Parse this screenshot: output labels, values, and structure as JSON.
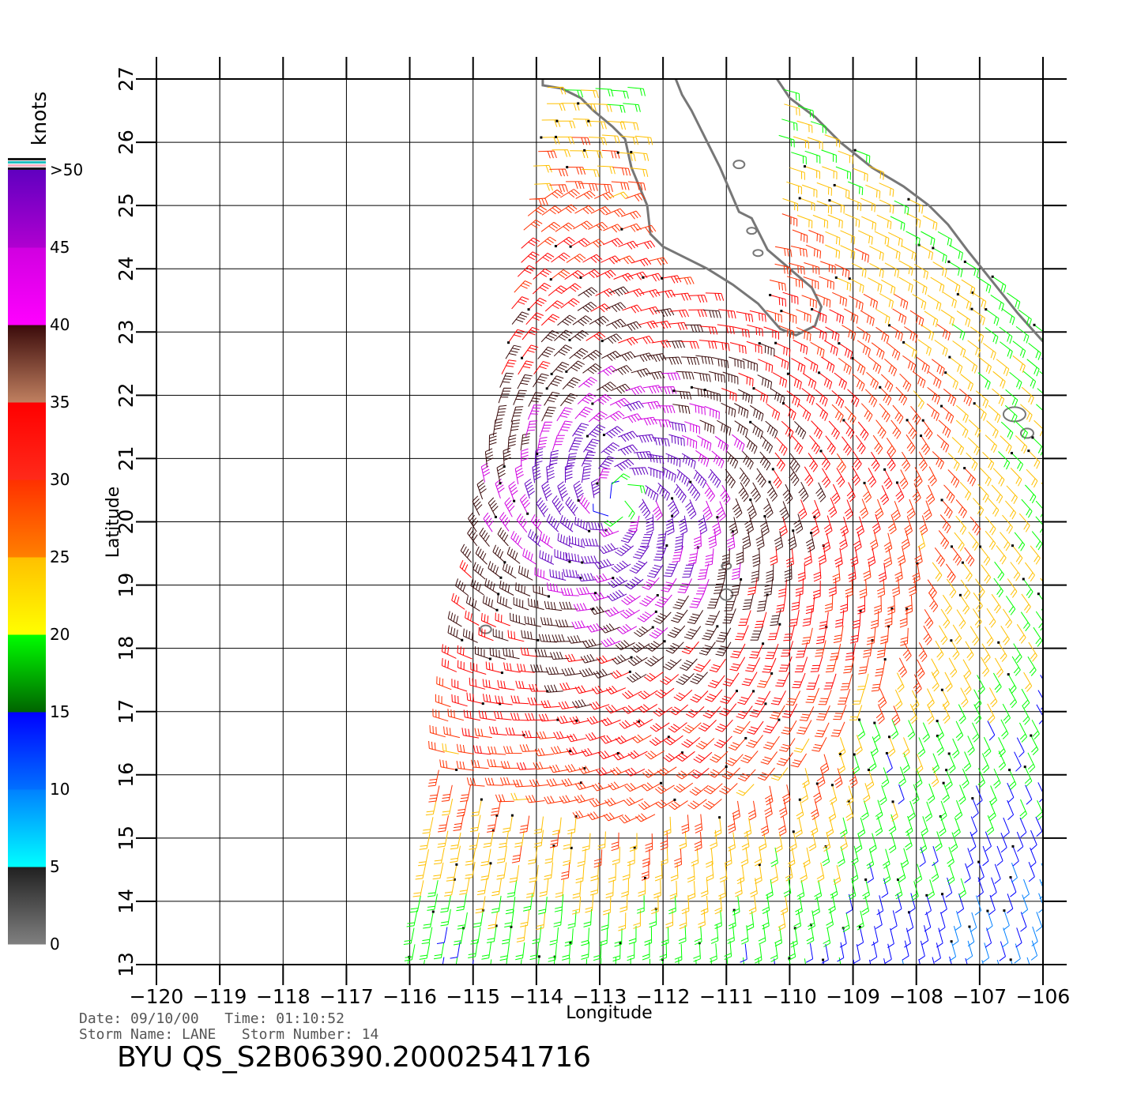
{
  "chart_data": {
    "type": "wind-barb-map",
    "xlabel": "Longitude",
    "ylabel": "Latitude",
    "xlim": [
      -120,
      -106
    ],
    "ylim": [
      13,
      27
    ],
    "x_ticks": [
      "-120",
      "-119",
      "-118",
      "-117",
      "-116",
      "-115",
      "-114",
      "-113",
      "-112",
      "-111",
      "-110",
      "-109",
      "-108",
      "-107",
      "-106"
    ],
    "y_ticks": [
      "13",
      "14",
      "15",
      "16",
      "17",
      "18",
      "19",
      "20",
      "21",
      "22",
      "23",
      "24",
      "25",
      "26",
      "27"
    ],
    "grid": true,
    "colorbar": {
      "unit": "knots",
      "position": "left",
      "labels": [
        "0",
        "5",
        "10",
        "15",
        "20",
        "25",
        "30",
        "35",
        "40",
        "45",
        ">50"
      ],
      "bins": [
        {
          "from": 0,
          "to": 5,
          "colors": [
            "#808080",
            "#202020"
          ]
        },
        {
          "from": 5,
          "to": 10,
          "colors": [
            "#00ffff",
            "#0080ff"
          ]
        },
        {
          "from": 10,
          "to": 15,
          "colors": [
            "#0070ff",
            "#0000ff"
          ]
        },
        {
          "from": 15,
          "to": 20,
          "colors": [
            "#006400",
            "#00ff00"
          ]
        },
        {
          "from": 20,
          "to": 25,
          "colors": [
            "#ffff00",
            "#ffc000"
          ]
        },
        {
          "from": 25,
          "to": 30,
          "colors": [
            "#ff8000",
            "#ff3000"
          ]
        },
        {
          "from": 30,
          "to": 35,
          "colors": [
            "#ff2a1a",
            "#ff0000"
          ]
        },
        {
          "from": 35,
          "to": 40,
          "colors": [
            "#c08060",
            "#3a0a0a"
          ]
        },
        {
          "from": 40,
          "to": 45,
          "colors": [
            "#ff00ff",
            "#d000e0"
          ]
        },
        {
          "from": 45,
          "to": 50,
          "colors": [
            "#b000d0",
            "#6000c0"
          ]
        }
      ]
    },
    "storm_center": {
      "lon": -112.7,
      "lat": 20.3
    },
    "max_wind_knots": 50,
    "swath": {
      "north_lat": 27,
      "south_lat": 13,
      "west_lon_north": -113.8,
      "west_lon_south": -116.0,
      "east_lon": -106
    }
  },
  "info": {
    "date_line": "Date: 09/10/00   Time: 01:10:52",
    "storm_line": "Storm Name: LANE   Storm Number: 14",
    "product_id": "BYU QS_S2B06390.20002541716"
  }
}
